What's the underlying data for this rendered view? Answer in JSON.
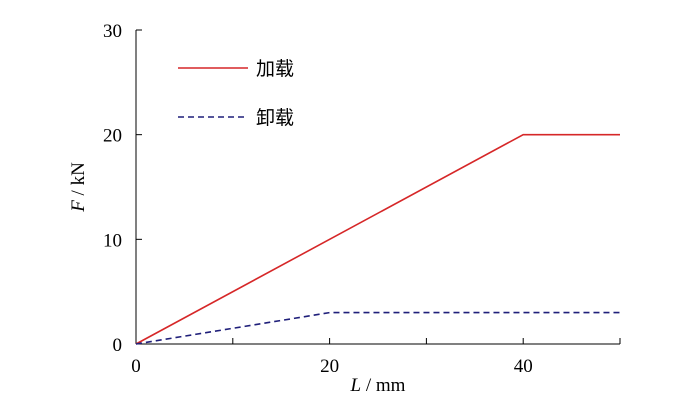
{
  "chart_data": {
    "type": "line",
    "xlabel_var": "L",
    "xlabel_unit": " / mm",
    "ylabel_var": "F",
    "ylabel_unit": " / kN",
    "xlim": [
      0,
      50
    ],
    "ylim": [
      0,
      30
    ],
    "x_ticks": [
      0,
      20,
      40
    ],
    "x_minor_ticks": [
      10,
      30,
      50
    ],
    "y_ticks": [
      0,
      10,
      20,
      30
    ],
    "grid": false,
    "legend_position": "top-left",
    "series": [
      {
        "name": "加载",
        "color": "#d62728",
        "style": "solid",
        "x": [
          0,
          40,
          50
        ],
        "y": [
          0,
          20,
          20
        ]
      },
      {
        "name": "卸载",
        "color": "#1f1f7a",
        "style": "dashed",
        "x": [
          0,
          20,
          50
        ],
        "y": [
          0,
          3,
          3
        ]
      }
    ]
  }
}
